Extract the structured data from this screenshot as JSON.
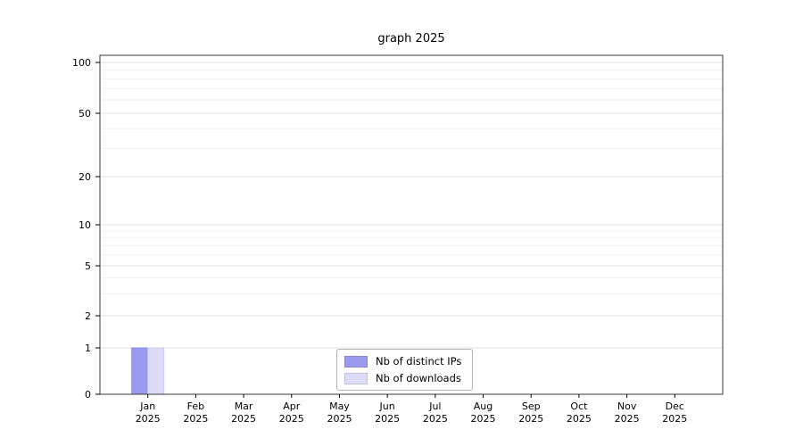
{
  "page": {
    "background": "#ffffff"
  },
  "chart_data": {
    "type": "bar",
    "title": "graph 2025",
    "categories": [
      "Jan",
      "Feb",
      "Mar",
      "Apr",
      "May",
      "Jun",
      "Jul",
      "Aug",
      "Sep",
      "Oct",
      "Nov",
      "Dec"
    ],
    "year": "2025",
    "series": [
      {
        "name": "Nb of distinct IPs",
        "color": "#9999ee",
        "edge_color": "#8a8ae2",
        "values": [
          1,
          0,
          0,
          0,
          0,
          0,
          0,
          0,
          0,
          0,
          0,
          0
        ]
      },
      {
        "name": "Nb of downloads",
        "color": "#dcdcf8",
        "edge_color": "#c9c9ef",
        "values": [
          1,
          0,
          0,
          0,
          0,
          0,
          0,
          0,
          0,
          0,
          0,
          0
        ]
      }
    ],
    "yticks": [
      0,
      1,
      2,
      5,
      10,
      20,
      50,
      100
    ],
    "ylim": [
      0,
      100
    ],
    "yscale": "log-like",
    "grid": "horizontal",
    "legend_position": "bottom-center",
    "colors": {
      "grid_minor": "#f0f0f0",
      "grid_major": "#e2e2e2",
      "axis_border": "#3a3a3a",
      "tick": "#000000"
    }
  }
}
